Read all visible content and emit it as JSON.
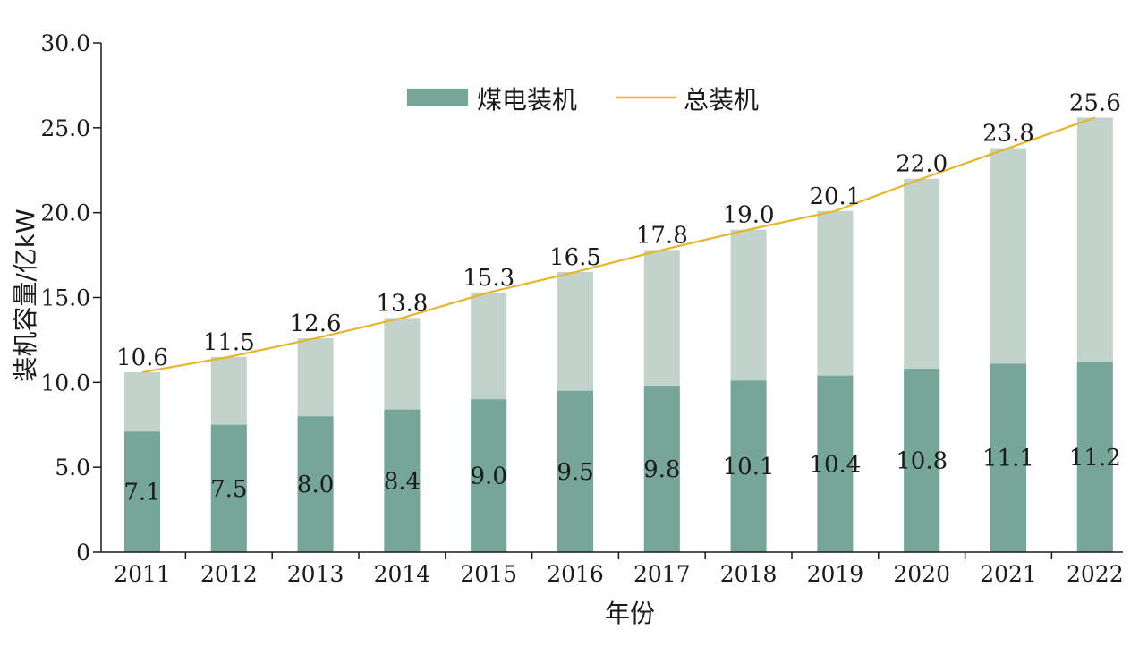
{
  "colors": {
    "coal": "#76a698",
    "total_bar": "#c1d3cb",
    "total_line": "#e6b52a",
    "axis": "#1a1a1a"
  },
  "chart_data": {
    "type": "bar",
    "title": "",
    "xlabel": "年份",
    "ylabel": "装机容量/亿kW",
    "ylim": [
      0,
      30
    ],
    "yticks": [
      0,
      5,
      10,
      15,
      20,
      25,
      30
    ],
    "ytick_labels": [
      "0",
      "5.0",
      "10.0",
      "15.0",
      "20.0",
      "25.0",
      "30.0"
    ],
    "categories": [
      "2011",
      "2012",
      "2013",
      "2014",
      "2015",
      "2016",
      "2017",
      "2018",
      "2019",
      "2020",
      "2021",
      "2022"
    ],
    "series": [
      {
        "name": "煤电装机",
        "type": "bar",
        "values": [
          7.1,
          7.5,
          8.0,
          8.4,
          9.0,
          9.5,
          9.8,
          10.1,
          10.4,
          10.8,
          11.1,
          11.2
        ],
        "labels": [
          "7.1",
          "7.5",
          "8.0",
          "8.4",
          "9.0",
          "9.5",
          "9.8",
          "10.1",
          "10.4",
          "10.8",
          "11.1",
          "11.2"
        ]
      },
      {
        "name": "总装机",
        "type": "line",
        "values": [
          10.6,
          11.5,
          12.6,
          13.8,
          15.3,
          16.5,
          17.8,
          19.0,
          20.1,
          22.0,
          23.8,
          25.6
        ],
        "labels": [
          "10.6",
          "11.5",
          "12.6",
          "13.8",
          "15.3",
          "16.5",
          "17.8",
          "19.0",
          "20.1",
          "22.0",
          "23.8",
          "25.6"
        ]
      }
    ],
    "legend_position": "top",
    "grid": false
  }
}
